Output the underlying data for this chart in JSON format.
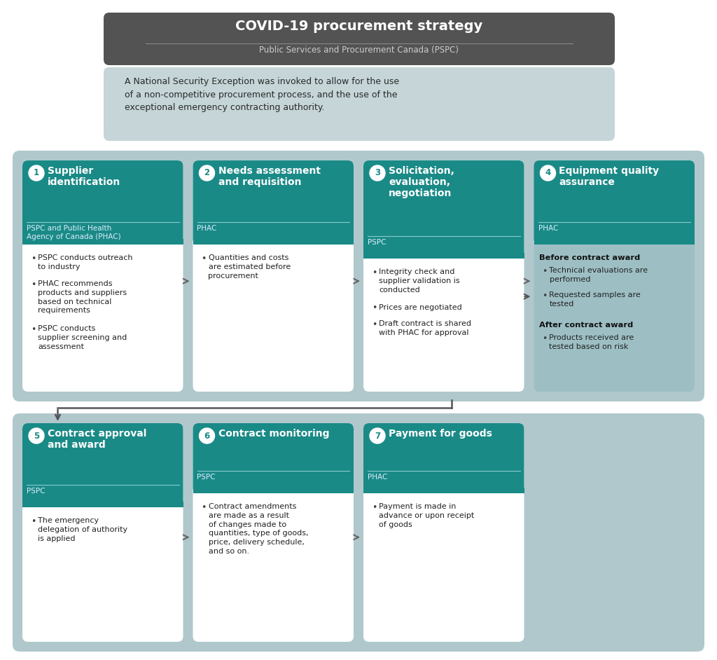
{
  "title": "COVID-19 procurement strategy",
  "subtitle": "Public Services and Procurement Canada (PSPC)",
  "intro_text": "A National Security Exception was invoked to allow for the use\nof a non-competitive procurement process, and the use of the\nexceptional emergency contracting authority.",
  "header_bg": "#535353",
  "intro_bg": "#c5d5d8",
  "outer_bg": "#b0c8cc",
  "teal_header": "#1a8a87",
  "card_bg": "#ffffff",
  "step4_body_bg": "#9dbfc4",
  "steps": [
    {
      "num": "1",
      "title": "Supplier\nidentification",
      "subtitle": "PSPC and Public Health\nAgency of Canada (PHAC)",
      "bullets": [
        "PSPC conducts outreach\nto industry",
        "PHAC recommends\nproducts and suppliers\nbased on technical\nrequirements",
        "PSPC conducts\nsupplier screening and\nassessment"
      ],
      "row": 0,
      "col": 0,
      "gray_body": false
    },
    {
      "num": "2",
      "title": "Needs assessment\nand requisition",
      "subtitle": "PHAC",
      "bullets": [
        "Quantities and costs\nare estimated before\nprocurement"
      ],
      "row": 0,
      "col": 1,
      "gray_body": false
    },
    {
      "num": "3",
      "title": "Solicitation,\nevaluation,\nnegotiation",
      "subtitle": "PSPC",
      "bullets": [
        "Integrity check and\nsupplier validation is\nconducted",
        "Prices are negotiated",
        "Draft contract is shared\nwith PHAC for approval"
      ],
      "row": 0,
      "col": 2,
      "gray_body": false
    },
    {
      "num": "4",
      "title": "Equipment quality\nassurance",
      "subtitle": "PHAC",
      "bullets_special": [
        {
          "bold": "Before contract award",
          "items": [
            "Technical evaluations are\nperformed",
            "Requested samples are\ntested"
          ]
        },
        {
          "bold": "After contract award",
          "items": [
            "Products received are\ntested based on risk"
          ]
        }
      ],
      "row": 0,
      "col": 3,
      "gray_body": true
    },
    {
      "num": "5",
      "title": "Contract approval\nand award",
      "subtitle": "PSPC",
      "bullets": [
        "The emergency\ndelegation of authority\nis applied"
      ],
      "row": 1,
      "col": 0,
      "gray_body": false
    },
    {
      "num": "6",
      "title": "Contract monitoring",
      "subtitle": "PSPC",
      "bullets": [
        "Contract amendments\nare made as a result\nof changes made to\nquantities, type of goods,\nprice, delivery schedule,\nand so on."
      ],
      "row": 1,
      "col": 1,
      "gray_body": false
    },
    {
      "num": "7",
      "title": "Payment for goods",
      "subtitle": "PHAC",
      "bullets": [
        "Payment is made in\nadvance or upon receipt\nof goods"
      ],
      "row": 1,
      "col": 2,
      "gray_body": false
    }
  ]
}
